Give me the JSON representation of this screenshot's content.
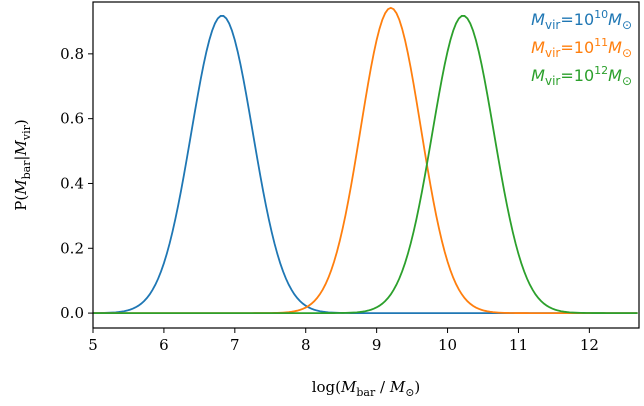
{
  "chart_data": {
    "type": "line",
    "xlabel": {
      "prefix": "log(",
      "var": "M",
      "sub": "bar",
      "sep": " / ",
      "unit": "M",
      "unit_sub": "⊙",
      "suffix": ")"
    },
    "ylabel": {
      "prefix": "P(",
      "var": "M",
      "sub": "bar",
      "bar": "|",
      "var2": "M",
      "sub2": "vir",
      "suffix": ")"
    },
    "xlim": [
      5,
      12.7
    ],
    "ylim": [
      -0.046,
      0.96
    ],
    "xticks": [
      "5",
      "6",
      "7",
      "8",
      "9",
      "10",
      "11",
      "12"
    ],
    "yticks": [
      "0.0",
      "0.2",
      "0.4",
      "0.6",
      "0.8"
    ],
    "legend_position": "top-right",
    "series": [
      {
        "name": "M_vir=10^10 M_⊙",
        "legend": {
          "var": "M",
          "sub": "vir",
          "eq": "=",
          "base": "10",
          "exp": "10",
          "unit": "M",
          "unit_sub": "⊙"
        },
        "color": "#1f77b4",
        "mean": 6.82,
        "sigma": 0.434,
        "peak": 0.918
      },
      {
        "name": "M_vir=10^11 M_⊙",
        "legend": {
          "var": "M",
          "sub": "vir",
          "eq": "=",
          "base": "10",
          "exp": "11",
          "unit": "M",
          "unit_sub": "⊙"
        },
        "color": "#ff7f0e",
        "mean": 9.2,
        "sigma": 0.424,
        "peak": 0.942
      },
      {
        "name": "M_vir=10^12 M_⊙",
        "legend": {
          "var": "M",
          "sub": "vir",
          "eq": "=",
          "base": "10",
          "exp": "12",
          "unit": "M",
          "unit_sub": "⊙"
        },
        "color": "#2ca02c",
        "mean": 10.22,
        "sigma": 0.434,
        "peak": 0.918
      }
    ]
  }
}
